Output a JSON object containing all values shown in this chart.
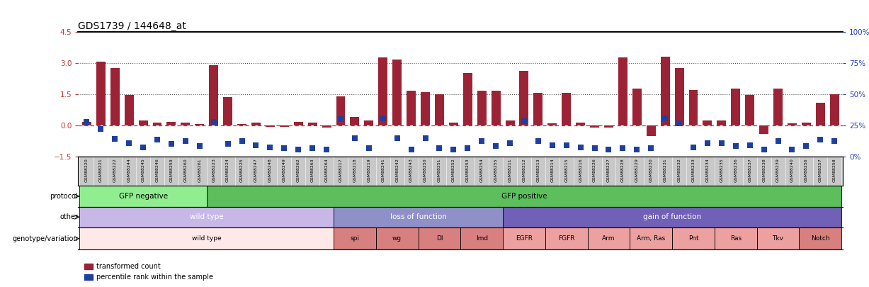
{
  "title": "GDS1739 / 144648_at",
  "ylim_left": [
    -1.5,
    4.5
  ],
  "ylim_right": [
    0,
    100
  ],
  "yticks_left": [
    -1.5,
    0,
    1.5,
    3.0,
    4.5
  ],
  "yticks_right": [
    0,
    25,
    50,
    75,
    100
  ],
  "sample_ids": [
    "GSM88220",
    "GSM88221",
    "GSM88222",
    "GSM88244",
    "GSM88245",
    "GSM88246",
    "GSM88259",
    "GSM88260",
    "GSM88261",
    "GSM88223",
    "GSM88224",
    "GSM88225",
    "GSM88247",
    "GSM88248",
    "GSM88249",
    "GSM88262",
    "GSM88263",
    "GSM88264",
    "GSM88217",
    "GSM88218",
    "GSM88219",
    "GSM88241",
    "GSM88242",
    "GSM88243",
    "GSM88250",
    "GSM88251",
    "GSM88252",
    "GSM88253",
    "GSM88254",
    "GSM88255",
    "GSM88211",
    "GSM88212",
    "GSM88213",
    "GSM88214",
    "GSM88215",
    "GSM88216",
    "GSM88226",
    "GSM88227",
    "GSM88228",
    "GSM88229",
    "GSM88230",
    "GSM88231",
    "GSM88232",
    "GSM88233",
    "GSM88234",
    "GSM88235",
    "GSM88236",
    "GSM88237",
    "GSM88238",
    "GSM88239",
    "GSM88240",
    "GSM88256",
    "GSM88257",
    "GSM88258"
  ],
  "red_values": [
    0.15,
    3.05,
    2.75,
    1.45,
    0.25,
    0.12,
    0.15,
    0.12,
    0.08,
    2.9,
    1.35,
    0.08,
    0.12,
    -0.07,
    -0.07,
    0.15,
    0.12,
    -0.12,
    1.4,
    0.4,
    0.25,
    3.25,
    3.15,
    1.65,
    1.6,
    1.5,
    0.12,
    2.5,
    1.65,
    1.65,
    0.25,
    2.6,
    1.55,
    0.1,
    1.55,
    0.12,
    -0.12,
    -0.12,
    3.25,
    1.75,
    -0.5,
    3.3,
    2.75,
    1.7,
    0.22,
    0.22,
    1.75,
    1.45,
    -0.4,
    1.75,
    0.1,
    0.12,
    1.1,
    1.5
  ],
  "blue_y": [
    0.15,
    -0.18,
    -0.65,
    -0.85,
    -1.05,
    -0.7,
    -0.9,
    -0.75,
    -1.0,
    0.15,
    -0.9,
    -0.75,
    -0.95,
    -1.05,
    -1.1,
    -1.15,
    -1.1,
    -1.15,
    0.3,
    -0.6,
    -1.1,
    0.35,
    -0.6,
    -1.15,
    -0.6,
    -1.1,
    -1.15,
    -1.1,
    -0.75,
    -1.0,
    -0.85,
    0.2,
    -0.75,
    -0.95,
    -0.95,
    -1.05,
    -1.1,
    -1.15,
    -1.1,
    -1.15,
    -1.1,
    0.35,
    0.1,
    -1.05,
    -0.85,
    -0.85,
    -1.0,
    -0.95,
    -1.15,
    -0.75,
    -1.15,
    -1.0,
    -0.7,
    -0.75
  ],
  "protocol_groups": [
    {
      "label": "GFP negative",
      "start": 0,
      "end": 9,
      "color": "#90EE90"
    },
    {
      "label": "GFP positive",
      "start": 9,
      "end": 54,
      "color": "#5CBF5C"
    }
  ],
  "other_groups": [
    {
      "label": "wild type",
      "start": 0,
      "end": 18,
      "color": "#C8B8E8"
    },
    {
      "label": "loss of function",
      "start": 18,
      "end": 30,
      "color": "#9090C8"
    },
    {
      "label": "gain of function",
      "start": 30,
      "end": 54,
      "color": "#7060B8"
    }
  ],
  "genotype_groups": [
    {
      "label": "wild type",
      "start": 0,
      "end": 18,
      "color": "#FFE8E8"
    },
    {
      "label": "spi",
      "start": 18,
      "end": 21,
      "color": "#D88080"
    },
    {
      "label": "wg",
      "start": 21,
      "end": 24,
      "color": "#D88080"
    },
    {
      "label": "Dl",
      "start": 24,
      "end": 27,
      "color": "#D88080"
    },
    {
      "label": "Imd",
      "start": 27,
      "end": 30,
      "color": "#D88080"
    },
    {
      "label": "EGFR",
      "start": 30,
      "end": 33,
      "color": "#ECA0A0"
    },
    {
      "label": "FGFR",
      "start": 33,
      "end": 36,
      "color": "#ECA0A0"
    },
    {
      "label": "Arm",
      "start": 36,
      "end": 39,
      "color": "#ECA0A0"
    },
    {
      "label": "Arm, Ras",
      "start": 39,
      "end": 42,
      "color": "#ECA0A0"
    },
    {
      "label": "Pnt",
      "start": 42,
      "end": 45,
      "color": "#ECA0A0"
    },
    {
      "label": "Ras",
      "start": 45,
      "end": 48,
      "color": "#ECA0A0"
    },
    {
      "label": "Tkv",
      "start": 48,
      "end": 51,
      "color": "#ECA0A0"
    },
    {
      "label": "Notch",
      "start": 51,
      "end": 54,
      "color": "#D88080"
    }
  ],
  "bar_color_red": "#9B2335",
  "bar_color_blue": "#1E3FA0",
  "left_tick_color": "#C0392B",
  "right_tick_color": "#2040C0",
  "hline_zero_color": "#C0392B",
  "hline_color": "#555555",
  "bar_width": 0.65,
  "blue_marker_size": 28,
  "legend_red": "transformed count",
  "legend_blue": "percentile rank within the sample",
  "xtick_bg": "#D0D0D0",
  "row_label_color": "#444444"
}
